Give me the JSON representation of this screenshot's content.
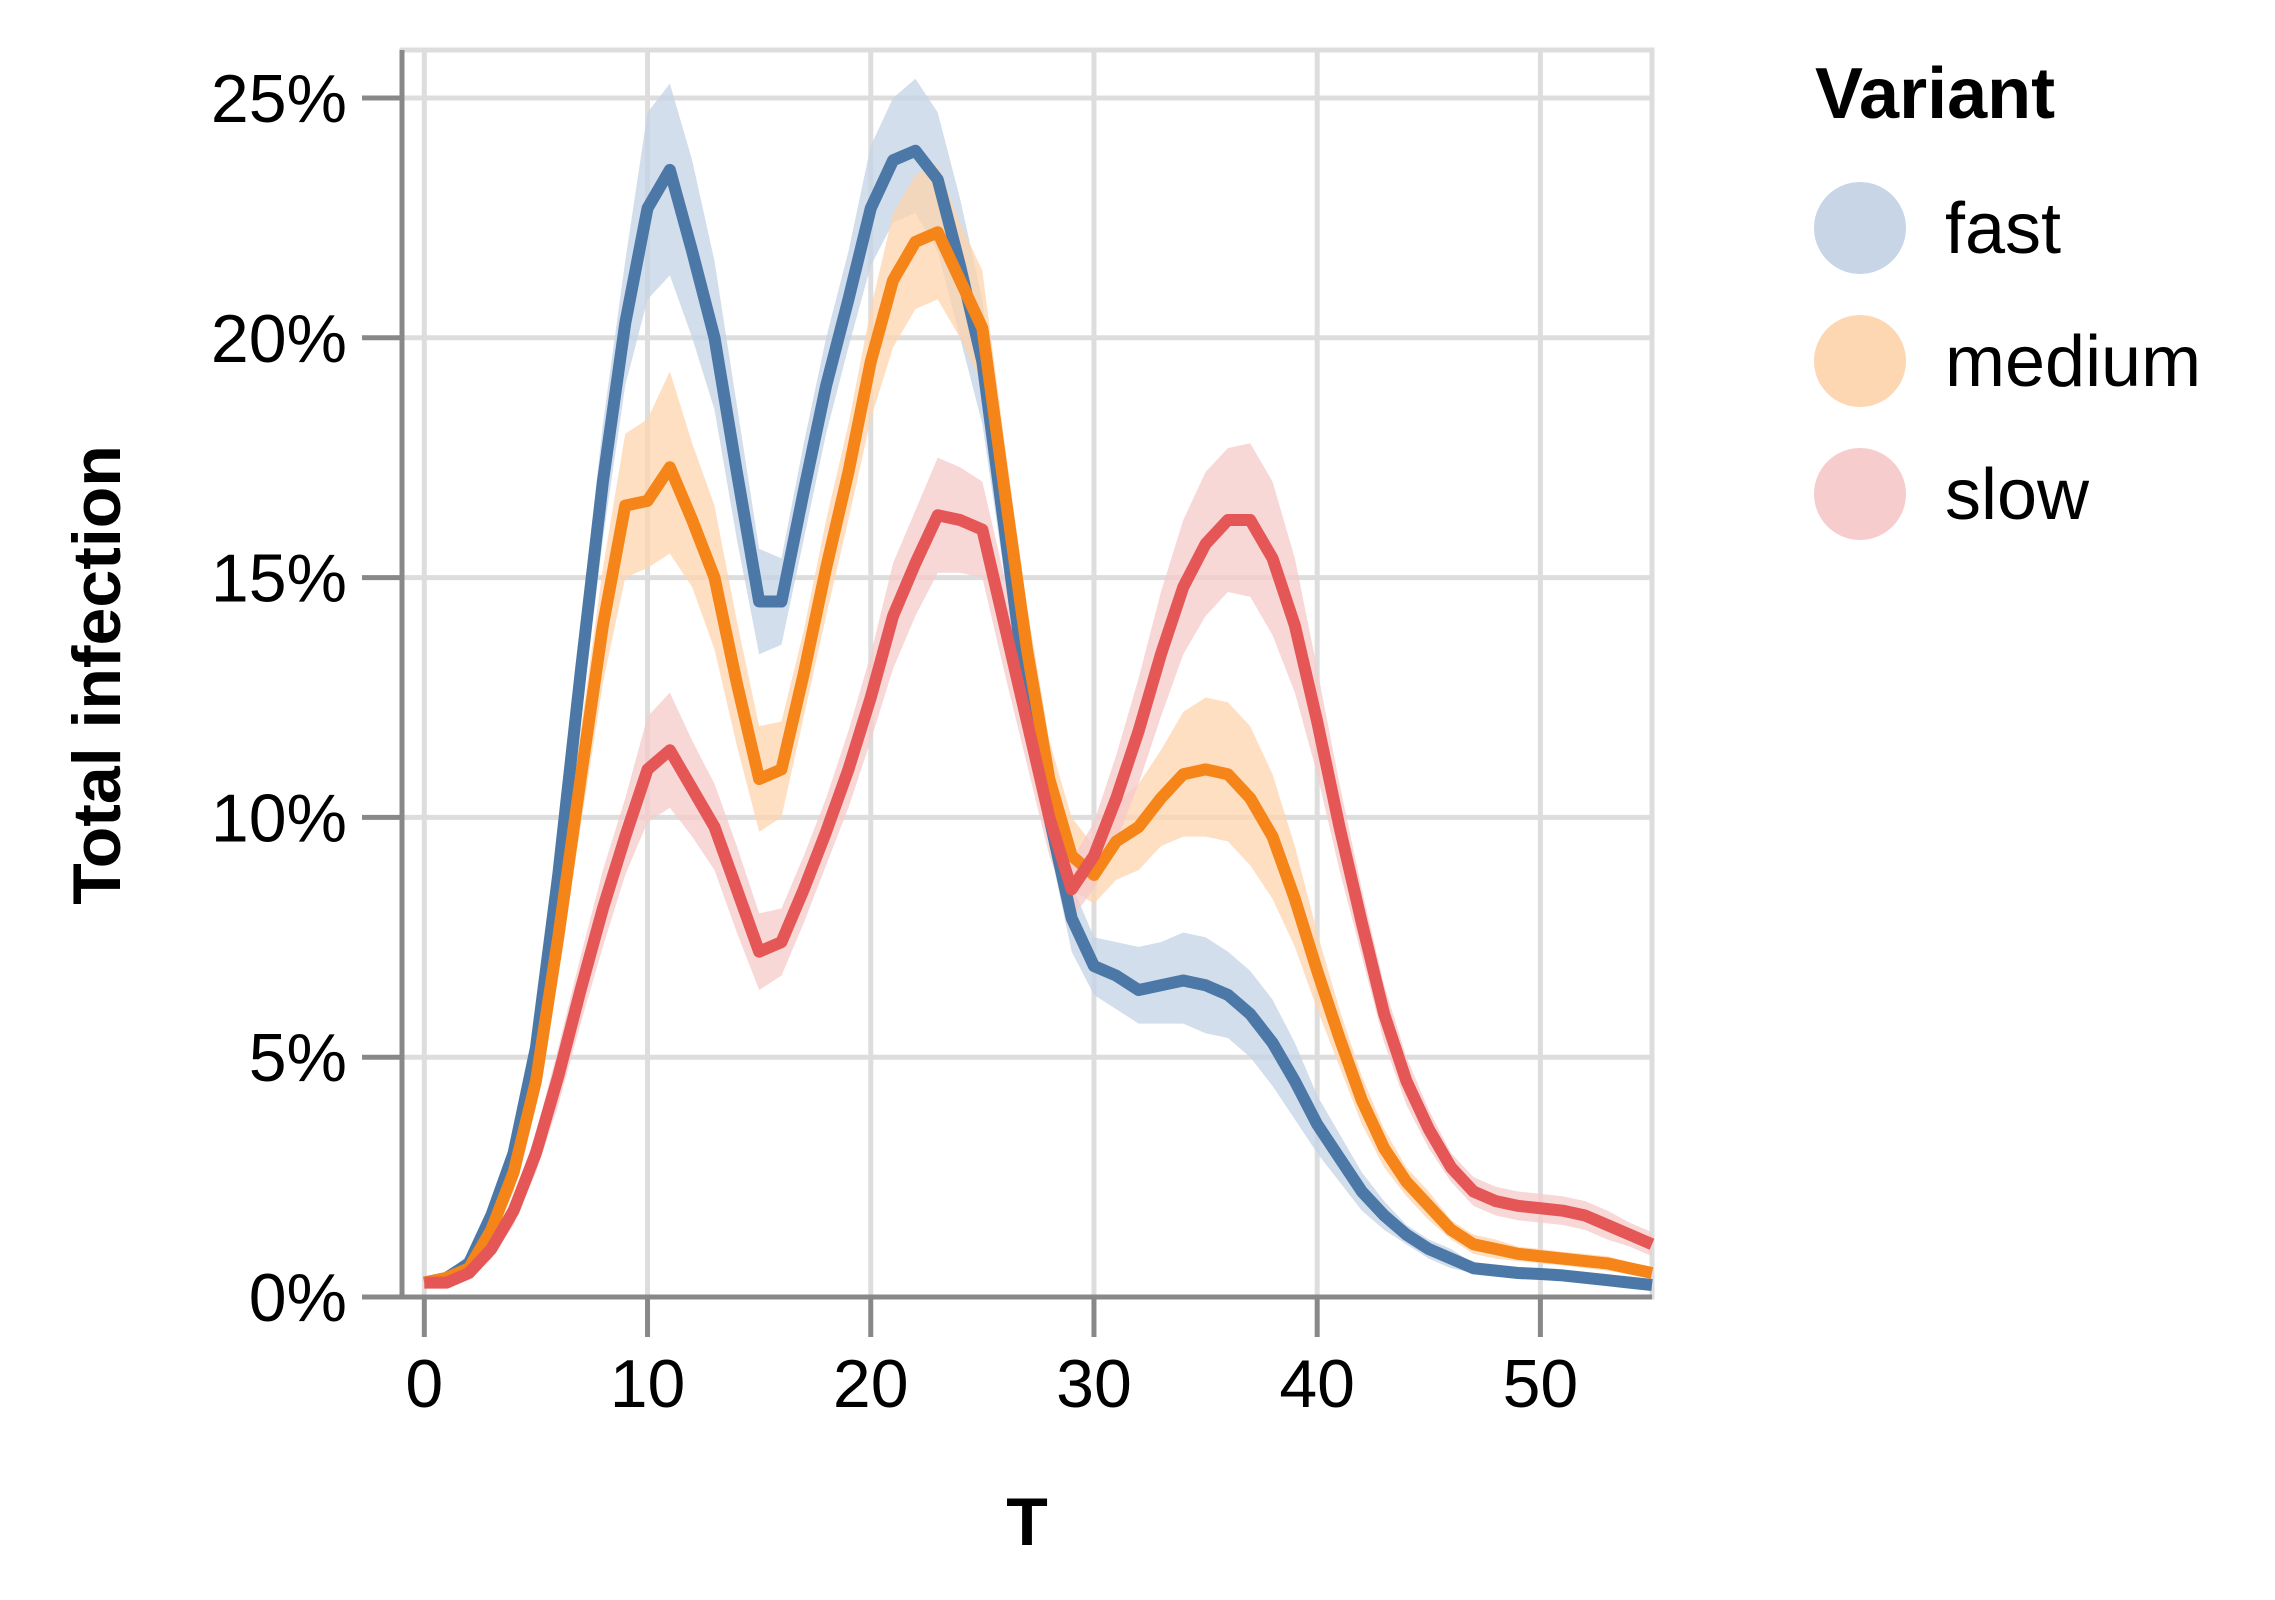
{
  "chart_data": {
    "type": "line",
    "xlabel": "T",
    "ylabel": "Total infection",
    "xlim": [
      -1,
      55
    ],
    "ylim": [
      0,
      0.26
    ],
    "x_ticks": [
      0,
      10,
      20,
      30,
      40,
      50
    ],
    "x_tick_labels": [
      "0",
      "10",
      "20",
      "30",
      "40",
      "50"
    ],
    "y_ticks": [
      0,
      0.05,
      0.1,
      0.15,
      0.2,
      0.25
    ],
    "y_tick_labels": [
      "0%",
      "5%",
      "10%",
      "15%",
      "20%",
      "25%"
    ],
    "grid": true,
    "legend": {
      "title": "Variant",
      "placement": "right"
    },
    "x": [
      0,
      1,
      2,
      3,
      4,
      5,
      6,
      7,
      8,
      9,
      10,
      11,
      12,
      13,
      14,
      15,
      16,
      17,
      18,
      19,
      20,
      21,
      22,
      23,
      24,
      25,
      26,
      27,
      28,
      29,
      30,
      31,
      32,
      33,
      34,
      35,
      36,
      37,
      38,
      39,
      40,
      41,
      42,
      43,
      44,
      45,
      46,
      47,
      48,
      49,
      50,
      51,
      52,
      53,
      54,
      55
    ],
    "series": [
      {
        "name": "fast",
        "color": "#4c78a8",
        "band_color": "#c4d3e5",
        "values": [
          0.003,
          0.004,
          0.007,
          0.017,
          0.03,
          0.052,
          0.088,
          0.13,
          0.17,
          0.203,
          0.227,
          0.235,
          0.218,
          0.2,
          0.172,
          0.145,
          0.145,
          0.168,
          0.19,
          0.208,
          0.227,
          0.237,
          0.239,
          0.233,
          0.215,
          0.195,
          0.16,
          0.125,
          0.1,
          0.079,
          0.069,
          0.067,
          0.064,
          0.065,
          0.066,
          0.065,
          0.063,
          0.059,
          0.053,
          0.045,
          0.036,
          0.029,
          0.022,
          0.017,
          0.013,
          0.01,
          0.008,
          0.006,
          0.0055,
          0.005,
          0.0048,
          0.0045,
          0.004,
          0.0035,
          0.003,
          0.0025
        ],
        "lower": [
          0.002,
          0.003,
          0.005,
          0.014,
          0.026,
          0.046,
          0.08,
          0.12,
          0.158,
          0.19,
          0.208,
          0.213,
          0.2,
          0.185,
          0.158,
          0.134,
          0.136,
          0.158,
          0.18,
          0.198,
          0.215,
          0.224,
          0.226,
          0.218,
          0.2,
          0.182,
          0.15,
          0.118,
          0.094,
          0.072,
          0.063,
          0.06,
          0.057,
          0.057,
          0.057,
          0.055,
          0.054,
          0.05,
          0.044,
          0.037,
          0.03,
          0.024,
          0.018,
          0.014,
          0.011,
          0.008,
          0.006,
          0.005,
          0.0045,
          0.004,
          0.0038,
          0.0035,
          0.003,
          0.0027,
          0.0023,
          0.0019
        ],
        "upper": [
          0.004,
          0.005,
          0.009,
          0.02,
          0.034,
          0.058,
          0.096,
          0.14,
          0.182,
          0.216,
          0.247,
          0.253,
          0.237,
          0.216,
          0.186,
          0.156,
          0.154,
          0.178,
          0.2,
          0.218,
          0.24,
          0.25,
          0.254,
          0.247,
          0.229,
          0.208,
          0.17,
          0.132,
          0.106,
          0.086,
          0.075,
          0.074,
          0.073,
          0.074,
          0.076,
          0.075,
          0.072,
          0.068,
          0.062,
          0.053,
          0.042,
          0.034,
          0.026,
          0.02,
          0.015,
          0.012,
          0.01,
          0.007,
          0.0065,
          0.006,
          0.0058,
          0.0055,
          0.005,
          0.0043,
          0.0037,
          0.0031
        ]
      },
      {
        "name": "medium",
        "color": "#f58518",
        "band_color": "#fdd4ae",
        "values": [
          0.003,
          0.004,
          0.006,
          0.014,
          0.026,
          0.045,
          0.075,
          0.108,
          0.14,
          0.165,
          0.166,
          0.173,
          0.162,
          0.15,
          0.128,
          0.108,
          0.11,
          0.13,
          0.152,
          0.172,
          0.195,
          0.212,
          0.22,
          0.222,
          0.212,
          0.202,
          0.168,
          0.135,
          0.108,
          0.092,
          0.088,
          0.095,
          0.098,
          0.104,
          0.109,
          0.11,
          0.109,
          0.104,
          0.096,
          0.083,
          0.068,
          0.054,
          0.041,
          0.031,
          0.024,
          0.019,
          0.014,
          0.011,
          0.01,
          0.009,
          0.0085,
          0.008,
          0.0075,
          0.007,
          0.006,
          0.005
        ],
        "lower": [
          0.002,
          0.003,
          0.005,
          0.012,
          0.022,
          0.04,
          0.067,
          0.098,
          0.128,
          0.15,
          0.152,
          0.155,
          0.148,
          0.135,
          0.115,
          0.097,
          0.1,
          0.121,
          0.142,
          0.162,
          0.183,
          0.198,
          0.206,
          0.208,
          0.2,
          0.19,
          0.158,
          0.126,
          0.1,
          0.085,
          0.082,
          0.087,
          0.089,
          0.094,
          0.096,
          0.096,
          0.095,
          0.09,
          0.083,
          0.073,
          0.06,
          0.048,
          0.036,
          0.027,
          0.021,
          0.016,
          0.012,
          0.009,
          0.008,
          0.0075,
          0.007,
          0.0066,
          0.006,
          0.0055,
          0.0047,
          0.0039
        ],
        "upper": [
          0.004,
          0.005,
          0.007,
          0.016,
          0.03,
          0.05,
          0.083,
          0.118,
          0.152,
          0.18,
          0.183,
          0.193,
          0.178,
          0.165,
          0.141,
          0.119,
          0.12,
          0.139,
          0.162,
          0.182,
          0.206,
          0.226,
          0.234,
          0.236,
          0.224,
          0.214,
          0.178,
          0.144,
          0.116,
          0.1,
          0.094,
          0.103,
          0.107,
          0.114,
          0.122,
          0.125,
          0.124,
          0.119,
          0.109,
          0.094,
          0.076,
          0.06,
          0.046,
          0.035,
          0.027,
          0.022,
          0.016,
          0.013,
          0.012,
          0.0105,
          0.01,
          0.0094,
          0.009,
          0.0085,
          0.0073,
          0.0061
        ]
      },
      {
        "name": "slow",
        "color": "#e45756",
        "band_color": "#f6c9c9",
        "values": [
          0.003,
          0.003,
          0.005,
          0.01,
          0.018,
          0.03,
          0.046,
          0.064,
          0.081,
          0.096,
          0.11,
          0.114,
          0.106,
          0.098,
          0.085,
          0.072,
          0.074,
          0.085,
          0.097,
          0.11,
          0.125,
          0.142,
          0.153,
          0.163,
          0.162,
          0.16,
          0.14,
          0.12,
          0.1,
          0.085,
          0.092,
          0.104,
          0.118,
          0.134,
          0.148,
          0.157,
          0.162,
          0.162,
          0.154,
          0.14,
          0.12,
          0.098,
          0.078,
          0.059,
          0.045,
          0.035,
          0.027,
          0.022,
          0.02,
          0.019,
          0.0185,
          0.018,
          0.017,
          0.015,
          0.013,
          0.011
        ],
        "lower": [
          0.002,
          0.002,
          0.004,
          0.008,
          0.015,
          0.026,
          0.04,
          0.057,
          0.073,
          0.088,
          0.099,
          0.102,
          0.096,
          0.089,
          0.076,
          0.064,
          0.067,
          0.078,
          0.09,
          0.102,
          0.116,
          0.131,
          0.142,
          0.151,
          0.151,
          0.15,
          0.13,
          0.111,
          0.092,
          0.079,
          0.085,
          0.095,
          0.107,
          0.121,
          0.134,
          0.142,
          0.147,
          0.146,
          0.138,
          0.126,
          0.109,
          0.089,
          0.071,
          0.053,
          0.04,
          0.031,
          0.024,
          0.019,
          0.017,
          0.016,
          0.0155,
          0.015,
          0.014,
          0.012,
          0.0105,
          0.0085
        ],
        "upper": [
          0.004,
          0.004,
          0.006,
          0.012,
          0.021,
          0.034,
          0.052,
          0.071,
          0.089,
          0.104,
          0.121,
          0.126,
          0.116,
          0.107,
          0.094,
          0.08,
          0.081,
          0.092,
          0.104,
          0.118,
          0.134,
          0.153,
          0.164,
          0.175,
          0.173,
          0.17,
          0.15,
          0.129,
          0.108,
          0.091,
          0.099,
          0.113,
          0.129,
          0.147,
          0.162,
          0.172,
          0.177,
          0.178,
          0.17,
          0.154,
          0.131,
          0.107,
          0.085,
          0.065,
          0.05,
          0.039,
          0.03,
          0.025,
          0.023,
          0.022,
          0.0215,
          0.021,
          0.02,
          0.018,
          0.0155,
          0.0135
        ]
      }
    ]
  }
}
